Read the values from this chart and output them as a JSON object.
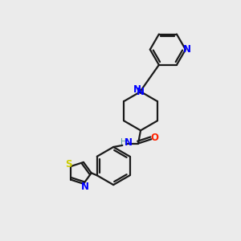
{
  "bg_color": "#ebebeb",
  "bond_color": "#1a1a1a",
  "N_color": "#0000ff",
  "O_color": "#ff2200",
  "S_color": "#cccc00",
  "H_color": "#5f9ea0",
  "line_width": 1.6,
  "font_size": 8.5,
  "xlim": [
    0,
    10
  ],
  "ylim": [
    0,
    10
  ]
}
